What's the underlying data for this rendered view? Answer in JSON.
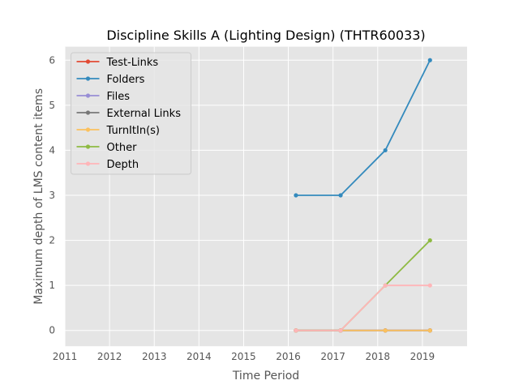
{
  "chart_data": {
    "type": "line",
    "title": "Discipline Skills A (Lighting Design) (THTR60033)",
    "xlabel": "Time Period",
    "ylabel": "Maximum depth of LMS content items",
    "xlim": [
      2011,
      2020
    ],
    "ylim": [
      -0.35,
      6.3
    ],
    "x_ticks": [
      "2011",
      "2012",
      "2013",
      "2014",
      "2015",
      "2016",
      "2017",
      "2018",
      "2019"
    ],
    "y_ticks": [
      "0",
      "1",
      "2",
      "3",
      "4",
      "5",
      "6"
    ],
    "grid": true,
    "legend_position": "top-left",
    "x": [
      2016.17,
      2017.17,
      2018.17,
      2019.17
    ],
    "series": [
      {
        "name": "Test-Links",
        "color": "#E24A33",
        "values": [
          0,
          0,
          0,
          0
        ]
      },
      {
        "name": "Folders",
        "color": "#348ABD",
        "values": [
          3,
          3,
          4,
          6
        ]
      },
      {
        "name": "Files",
        "color": "#988ED5",
        "values": [
          0,
          0,
          0,
          0
        ]
      },
      {
        "name": "External Links",
        "color": "#777777",
        "values": [
          0,
          0,
          0,
          0
        ]
      },
      {
        "name": "TurnItIn(s)",
        "color": "#FBC15E",
        "values": [
          0,
          0,
          0,
          0
        ]
      },
      {
        "name": "Other",
        "color": "#8EBA42",
        "values": [
          0,
          0,
          1,
          2
        ]
      },
      {
        "name": "Depth",
        "color": "#FFB5B8",
        "values": [
          0,
          0,
          1,
          1
        ]
      }
    ]
  }
}
